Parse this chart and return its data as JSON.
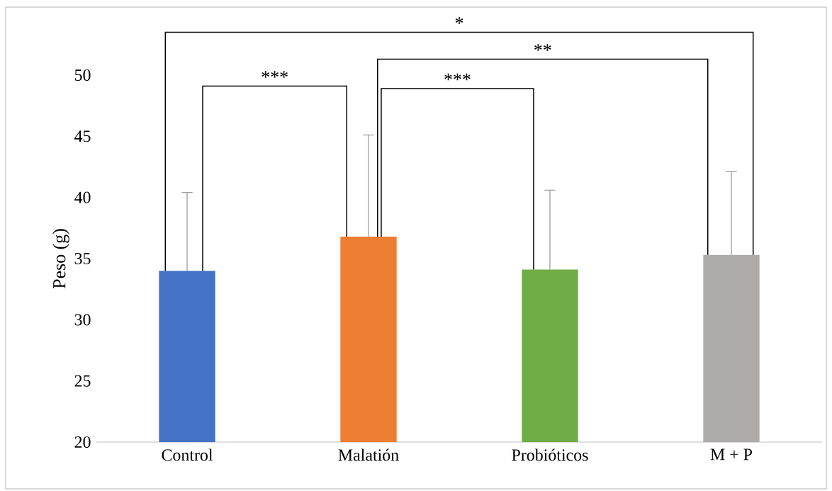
{
  "chart_data": {
    "type": "bar",
    "ylabel": "Peso (g)",
    "categories": [
      "Control",
      "Malatión",
      "Probióticos",
      "M + P"
    ],
    "values": [
      34.0,
      36.8,
      34.1,
      35.3
    ],
    "colors": [
      "#4472c4",
      "#ed7d31",
      "#70ad47",
      "#afabab"
    ],
    "errors": [
      [
        34.0,
        40.4
      ],
      [
        36.8,
        45.1
      ],
      [
        34.1,
        40.6
      ],
      [
        35.3,
        42.1
      ]
    ],
    "ylim": [
      20,
      50
    ],
    "yticks": [
      20,
      25,
      30,
      35,
      40,
      45,
      50
    ],
    "annotations": [
      "*",
      "**",
      "***",
      "***"
    ]
  }
}
